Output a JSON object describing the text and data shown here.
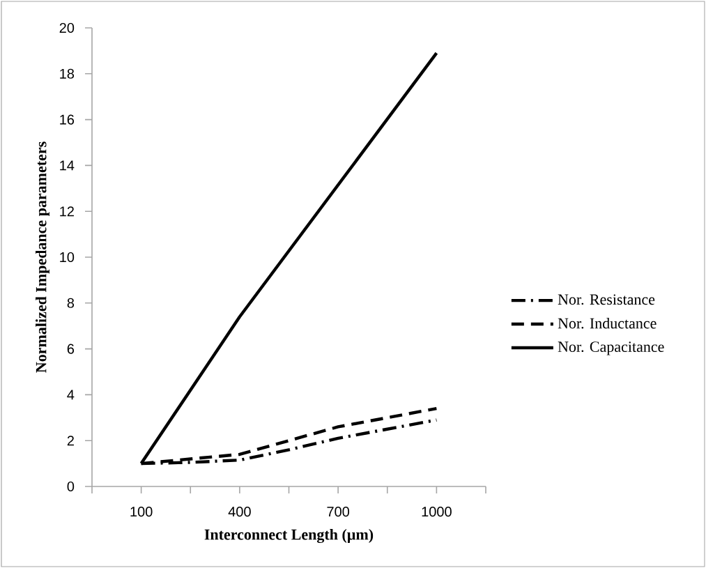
{
  "chart_data": {
    "type": "line",
    "xlabel": "Interconnect Length (µm)",
    "ylabel": "Normalized Impedance parameters",
    "xlim": [
      -50,
      1150
    ],
    "xticks": [
      {
        "value": -50,
        "label": null
      },
      100,
      {
        "value": 250,
        "label": null
      },
      400,
      {
        "value": 550,
        "label": null
      },
      700,
      {
        "value": 850,
        "label": null
      },
      1000,
      {
        "value": 1150,
        "label": null
      }
    ],
    "ylim": [
      0,
      20
    ],
    "yticks": [
      0,
      2,
      4,
      6,
      8,
      10,
      12,
      14,
      16,
      18,
      20
    ],
    "legend": "right",
    "grid": false,
    "marker": "none",
    "series": [
      {
        "name": "Nor. Resistance",
        "color": "#000000",
        "line_style": "dashdot",
        "x": [
          100,
          250,
          400,
          550,
          700,
          850,
          1000
        ],
        "values": [
          1.0,
          1.05,
          1.15,
          1.6,
          2.1,
          2.5,
          2.9
        ]
      },
      {
        "name": "Nor. Inductance",
        "color": "#000000",
        "line_style": "dashed",
        "x": [
          100,
          250,
          400,
          550,
          700,
          850,
          1000
        ],
        "values": [
          1.0,
          1.2,
          1.4,
          2.0,
          2.6,
          3.0,
          3.4
        ]
      },
      {
        "name": "Nor. Capacitance",
        "color": "#000000",
        "line_style": "solid",
        "x": [
          100,
          400,
          1000
        ],
        "values": [
          1.0,
          7.4,
          18.9
        ]
      }
    ]
  }
}
